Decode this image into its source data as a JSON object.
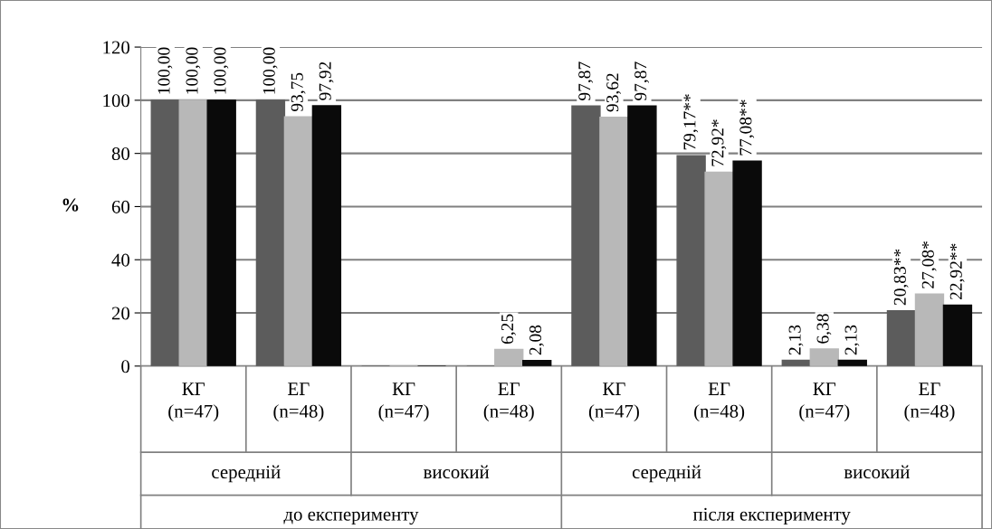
{
  "chart_data": {
    "type": "bar",
    "ylabel": "%",
    "categories": [
      "КГ\n(n=47)",
      "ЕГ\n(n=48)",
      "КГ\n(n=47)",
      "ЕГ\n(n=48)",
      "КГ\n(n=47)",
      "ЕГ\n(n=48)",
      "КГ\n(n=47)",
      "ЕГ\n(n=48)"
    ],
    "series": [
      {
        "color": "#5c5c5c",
        "values": [
          100,
          100,
          0,
          0,
          97.87,
          79.17,
          2.13,
          20.83
        ],
        "value_labels": [
          "100,00",
          "100,00",
          null,
          null,
          "97,87",
          "79,17**",
          "2,13",
          "20,83**"
        ]
      },
      {
        "color": "#b8b8b8",
        "values": [
          100,
          93.75,
          0,
          6.25,
          93.62,
          72.92,
          6.38,
          27.08
        ],
        "value_labels": [
          "100,00",
          "93,75",
          null,
          "6,25",
          "93,62",
          "72,92*",
          "6,38",
          "27,08*"
        ]
      },
      {
        "color": "#0a0a0a",
        "values": [
          100,
          97.92,
          0,
          2.08,
          97.87,
          77.08,
          2.13,
          22.92
        ],
        "value_labels": [
          "100,00",
          "97,92",
          null,
          "2,08",
          "97,87",
          "77,08**",
          "2,13",
          "22,92**"
        ]
      }
    ],
    "annotations": [
      "середній",
      "високий",
      "середній",
      "високий",
      "до експерименту",
      "після експерименту"
    ],
    "ylim": [
      0,
      120
    ],
    "yticks": [
      0,
      20,
      40,
      60,
      80,
      100,
      120
    ],
    "grid": "y",
    "legend": false
  }
}
